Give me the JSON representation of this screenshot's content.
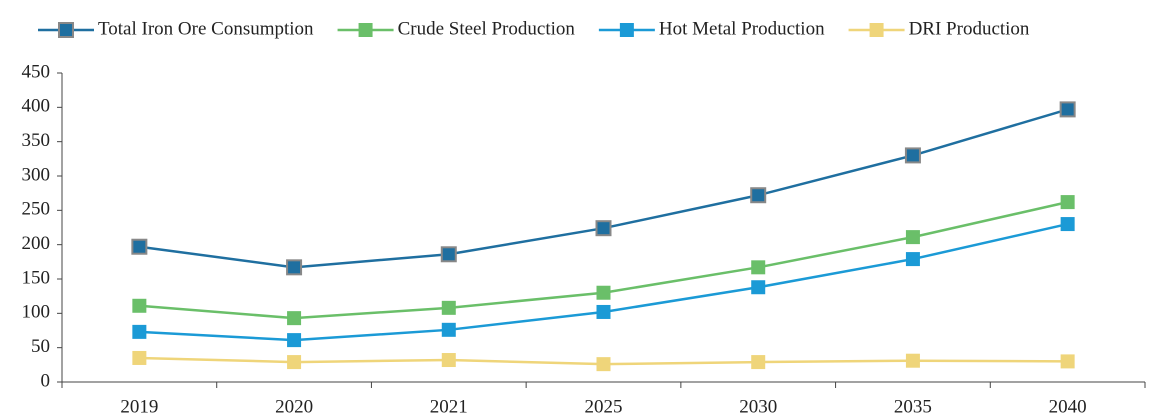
{
  "chart_data": {
    "type": "line",
    "categories": [
      "2019",
      "2020",
      "2021",
      "2025",
      "2030",
      "2035",
      "2040"
    ],
    "series": [
      {
        "name": "Total Iron Ore Consumption",
        "color": "#1f6fa0",
        "values": [
          197,
          167,
          186,
          224,
          272,
          330,
          397
        ]
      },
      {
        "name": "Crude Steel Production",
        "color": "#6abf69",
        "values": [
          111,
          93,
          108,
          130,
          167,
          211,
          262
        ]
      },
      {
        "name": "Hot Metal Production",
        "color": "#1b9ad6",
        "values": [
          73,
          61,
          76,
          102,
          138,
          179,
          230
        ]
      },
      {
        "name": "DRI Production",
        "color": "#efd57a",
        "values": [
          35,
          29,
          32,
          26,
          29,
          31,
          30
        ]
      }
    ],
    "ylim": [
      0,
      450
    ],
    "yticks": [
      0,
      50,
      100,
      150,
      200,
      250,
      300,
      350,
      400,
      450
    ],
    "legend": "top"
  }
}
